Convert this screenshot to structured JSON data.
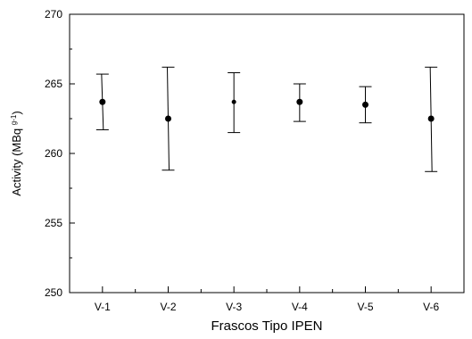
{
  "chart_data": {
    "type": "scatter",
    "title": "",
    "xlabel": "Frascos Tipo IPEN",
    "ylabel": "Activity (MBq g⁻¹)",
    "ylabel_main": "Activity (MBq ",
    "ylabel_sup": "g-1",
    "ylabel_close": ")",
    "categories": [
      "V-1",
      "V-2",
      "V-3",
      "V-4",
      "V-5",
      "V-6"
    ],
    "ylim": [
      250,
      270
    ],
    "yticks": [
      250,
      255,
      260,
      265,
      270
    ],
    "grid": false,
    "series": [
      {
        "values": [
          263.7,
          262.5,
          263.7,
          263.7,
          263.5,
          262.5
        ],
        "error_low": [
          261.7,
          258.8,
          261.5,
          262.3,
          262.2,
          258.7
        ],
        "error_high": [
          265.7,
          266.2,
          265.8,
          265.0,
          264.8,
          266.2
        ]
      }
    ]
  }
}
